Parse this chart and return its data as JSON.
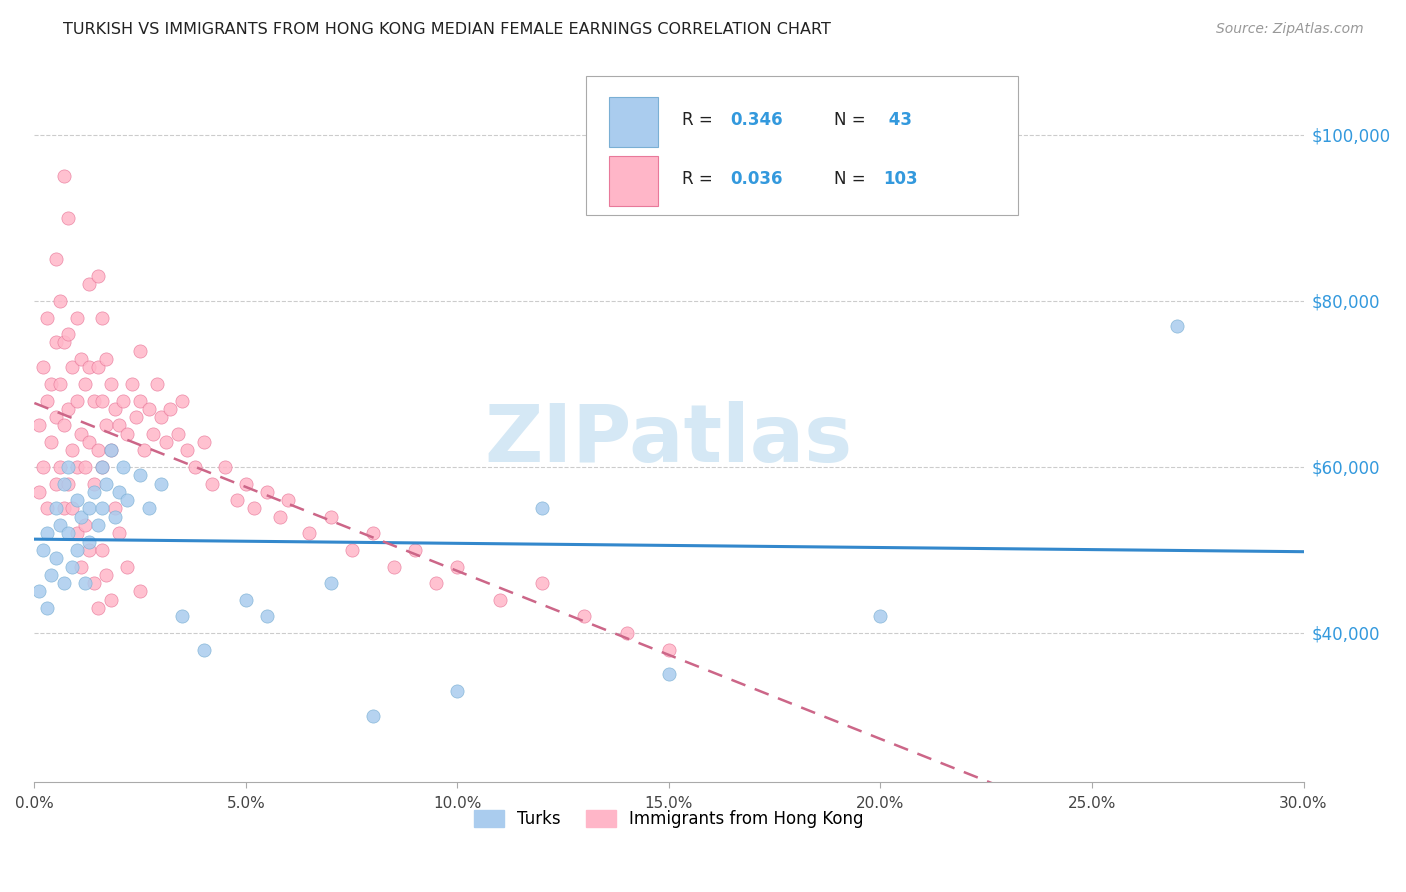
{
  "title": "TURKISH VS IMMIGRANTS FROM HONG KONG MEDIAN FEMALE EARNINGS CORRELATION CHART",
  "source": "Source: ZipAtlas.com",
  "xlabel_ticks": [
    "0.0%",
    "5.0%",
    "10.0%",
    "15.0%",
    "20.0%",
    "25.0%",
    "30.0%"
  ],
  "xlabel_vals": [
    0.0,
    0.05,
    0.1,
    0.15,
    0.2,
    0.25,
    0.3
  ],
  "ylabel_ticks": [
    "$40,000",
    "$60,000",
    "$80,000",
    "$100,000"
  ],
  "ylabel_vals": [
    40000,
    60000,
    80000,
    100000
  ],
  "xlim": [
    0.0,
    0.3
  ],
  "ylim": [
    22000,
    108000
  ],
  "legend_label1": "Turks",
  "legend_label2": "Immigrants from Hong Kong",
  "R1": "0.346",
  "N1": "43",
  "R2": "0.036",
  "N2": "103",
  "color_blue_fill": "#aaccee",
  "color_blue_edge": "#7aafd4",
  "color_blue_line": "#3388cc",
  "color_pink_fill": "#ffb6c8",
  "color_pink_edge": "#e8799a",
  "color_pink_line": "#cc6688",
  "watermark_color": "#d5e8f5",
  "grid_color": "#cccccc",
  "right_axis_color": "#3399dd",
  "turks_x": [
    0.001,
    0.002,
    0.003,
    0.003,
    0.004,
    0.005,
    0.005,
    0.006,
    0.007,
    0.007,
    0.008,
    0.008,
    0.009,
    0.01,
    0.01,
    0.011,
    0.012,
    0.013,
    0.013,
    0.014,
    0.015,
    0.016,
    0.016,
    0.017,
    0.018,
    0.019,
    0.02,
    0.021,
    0.022,
    0.025,
    0.027,
    0.03,
    0.035,
    0.04,
    0.05,
    0.055,
    0.07,
    0.08,
    0.1,
    0.12,
    0.15,
    0.2,
    0.27
  ],
  "turks_y": [
    45000,
    50000,
    43000,
    52000,
    47000,
    55000,
    49000,
    53000,
    46000,
    58000,
    52000,
    60000,
    48000,
    56000,
    50000,
    54000,
    46000,
    55000,
    51000,
    57000,
    53000,
    60000,
    55000,
    58000,
    62000,
    54000,
    57000,
    60000,
    56000,
    59000,
    55000,
    58000,
    42000,
    38000,
    44000,
    42000,
    46000,
    30000,
    33000,
    55000,
    35000,
    42000,
    77000
  ],
  "hk_x": [
    0.001,
    0.001,
    0.002,
    0.002,
    0.003,
    0.003,
    0.003,
    0.004,
    0.004,
    0.005,
    0.005,
    0.005,
    0.005,
    0.006,
    0.006,
    0.006,
    0.007,
    0.007,
    0.007,
    0.008,
    0.008,
    0.008,
    0.009,
    0.009,
    0.01,
    0.01,
    0.01,
    0.011,
    0.011,
    0.012,
    0.012,
    0.013,
    0.013,
    0.013,
    0.014,
    0.014,
    0.015,
    0.015,
    0.015,
    0.016,
    0.016,
    0.016,
    0.017,
    0.017,
    0.018,
    0.018,
    0.019,
    0.02,
    0.021,
    0.022,
    0.023,
    0.024,
    0.025,
    0.025,
    0.026,
    0.027,
    0.028,
    0.029,
    0.03,
    0.031,
    0.032,
    0.034,
    0.035,
    0.036,
    0.038,
    0.04,
    0.042,
    0.045,
    0.048,
    0.05,
    0.052,
    0.055,
    0.058,
    0.06,
    0.065,
    0.07,
    0.075,
    0.08,
    0.085,
    0.09,
    0.095,
    0.1,
    0.11,
    0.12,
    0.13,
    0.14,
    0.15,
    0.007,
    0.008,
    0.009,
    0.01,
    0.011,
    0.012,
    0.013,
    0.014,
    0.015,
    0.016,
    0.017,
    0.018,
    0.019,
    0.02,
    0.022,
    0.025
  ],
  "hk_y": [
    57000,
    65000,
    60000,
    72000,
    55000,
    68000,
    78000,
    63000,
    70000,
    58000,
    66000,
    75000,
    85000,
    60000,
    70000,
    80000,
    55000,
    65000,
    75000,
    58000,
    67000,
    76000,
    62000,
    72000,
    60000,
    68000,
    78000,
    64000,
    73000,
    60000,
    70000,
    63000,
    72000,
    82000,
    58000,
    68000,
    62000,
    72000,
    83000,
    60000,
    68000,
    78000,
    65000,
    73000,
    62000,
    70000,
    67000,
    65000,
    68000,
    64000,
    70000,
    66000,
    68000,
    74000,
    62000,
    67000,
    64000,
    70000,
    66000,
    63000,
    67000,
    64000,
    68000,
    62000,
    60000,
    63000,
    58000,
    60000,
    56000,
    58000,
    55000,
    57000,
    54000,
    56000,
    52000,
    54000,
    50000,
    52000,
    48000,
    50000,
    46000,
    48000,
    44000,
    46000,
    42000,
    40000,
    38000,
    95000,
    90000,
    55000,
    52000,
    48000,
    53000,
    50000,
    46000,
    43000,
    50000,
    47000,
    44000,
    55000,
    52000,
    48000,
    45000
  ]
}
